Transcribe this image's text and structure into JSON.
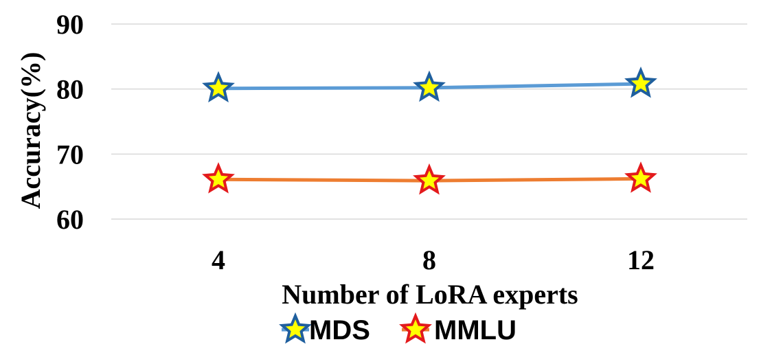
{
  "chart_data": {
    "type": "line",
    "categories": [
      "4",
      "8",
      "12"
    ],
    "series": [
      {
        "name": "MDS",
        "values": [
          80.1,
          80.2,
          80.8
        ],
        "color": "#5B9BD5",
        "marker_outline": "#1F5F9E"
      },
      {
        "name": "MMLU",
        "values": [
          66.1,
          65.9,
          66.2
        ],
        "color": "#ED7D31",
        "marker_outline": "#E31A1C"
      }
    ],
    "marker": "star",
    "marker_fill": "#FFFF00",
    "xlabel": "Number of LoRA experts",
    "ylabel": "Accuracy(%)",
    "ylim": [
      60,
      90
    ],
    "yticks": [
      "60",
      "70",
      "80",
      "90"
    ],
    "grid": true,
    "legend_position": "bottom",
    "gridline_color": "#D9D9D9"
  }
}
